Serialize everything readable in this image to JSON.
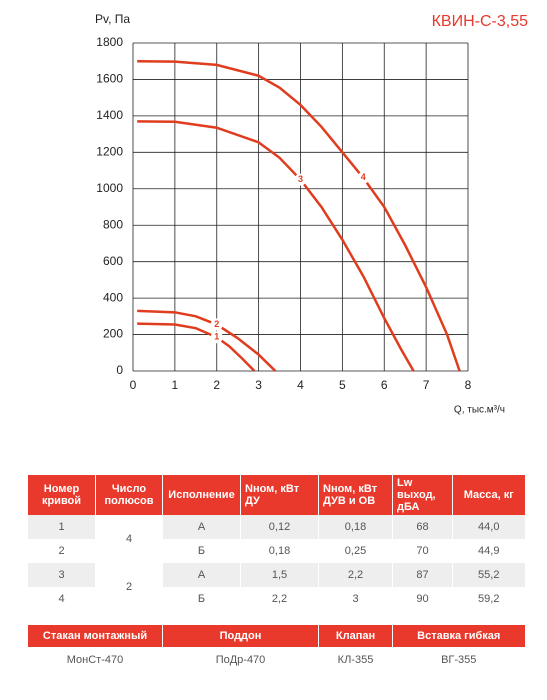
{
  "chart_data": {
    "type": "line",
    "title": "КВИН-С-3,55",
    "y_label": "Pv, Па",
    "x_label": "Q, тыс.м³/ч",
    "xlim": [
      0,
      8
    ],
    "xticks": [
      0,
      1,
      2,
      3,
      4,
      5,
      6,
      7,
      8
    ],
    "ylim": [
      0,
      1800
    ],
    "yticks": [
      0,
      200,
      400,
      600,
      800,
      1000,
      1200,
      1400,
      1600,
      1800
    ],
    "grid": true,
    "series": [
      {
        "name": "1",
        "color": "#e03c1e",
        "x": [
          0.1,
          1,
          1.5,
          2,
          2.3,
          2.6,
          2.9
        ],
        "values": [
          260,
          255,
          235,
          185,
          135,
          70,
          0
        ]
      },
      {
        "name": "2",
        "color": "#e03c1e",
        "x": [
          0.1,
          1,
          1.5,
          2,
          2.5,
          3,
          3.2,
          3.4
        ],
        "values": [
          330,
          322,
          300,
          255,
          180,
          90,
          45,
          0
        ]
      },
      {
        "name": "3",
        "color": "#e03c1e",
        "x": [
          0.1,
          1,
          2,
          3,
          3.5,
          4,
          4.5,
          5,
          5.5,
          6,
          6.4,
          6.7
        ],
        "values": [
          1370,
          1368,
          1335,
          1255,
          1170,
          1050,
          900,
          720,
          520,
          290,
          120,
          0
        ]
      },
      {
        "name": "4",
        "color": "#e03c1e",
        "x": [
          0.1,
          1,
          2,
          3,
          3.5,
          4,
          4.5,
          5,
          5.5,
          6,
          6.5,
          7,
          7.5,
          7.8
        ],
        "values": [
          1700,
          1698,
          1680,
          1620,
          1555,
          1460,
          1340,
          1200,
          1060,
          900,
          690,
          460,
          200,
          0
        ]
      }
    ]
  },
  "table": {
    "headers": [
      "Номер кривой",
      "Число полюсов",
      "Исполнение",
      "Nном, кВт ДУ",
      "Nном, кВт ДУВ и ОВ",
      "Lw выход, дБА",
      "Масса, кг"
    ],
    "rows": [
      [
        "1",
        "4",
        "А",
        "0,12",
        "0,18",
        "68",
        "44,0"
      ],
      [
        "2",
        "Б",
        "0,18",
        "0,25",
        "70",
        "44,9"
      ],
      [
        "3",
        "2",
        "А",
        "1,5",
        "2,2",
        "87",
        "55,2"
      ],
      [
        "4",
        "Б",
        "2,2",
        "3",
        "90",
        "59,2"
      ]
    ]
  },
  "accessories": {
    "headers": [
      "Стакан монтажный",
      "Поддон",
      "Клапан",
      "Вставка гибкая"
    ],
    "values": [
      "МонСт-470",
      "ПоДр-470",
      "КЛ-355",
      "ВГ-355"
    ]
  }
}
